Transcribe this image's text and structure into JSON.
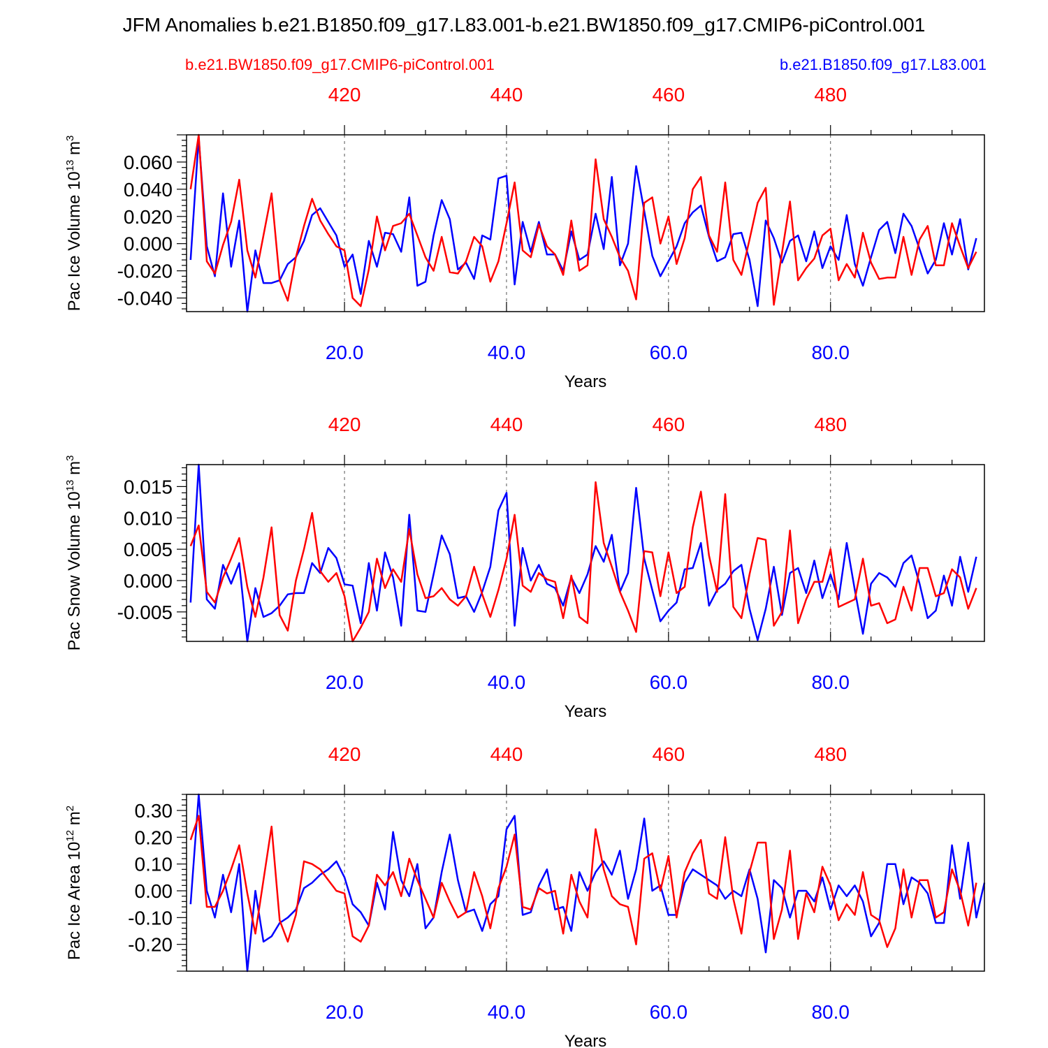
{
  "title": "JFM Anomalies b.e21.B1850.f09_g17.L83.001-b.e21.BW1850.f09_g17.CMIP6-piControl.001",
  "legend": {
    "red_case": "b.e21.BW1850.f09_g17.CMIP6-piControl.001",
    "blue_case": "b.e21.B1850.f09_g17.L83.001"
  },
  "colors": {
    "red": "#ff0000",
    "blue": "#0000ff",
    "axis": "#000000"
  },
  "chart_data": [
    {
      "type": "line",
      "name": "ice-volume",
      "ylabel_main": "Pac Ice Volume 10",
      "ylabel_sup": "13",
      "ylabel_unit": " m",
      "ylabel_unit_sup": "3",
      "xlabel": "Years",
      "xlim": [
        0.5,
        99
      ],
      "x_top_offset": 400,
      "ylim": [
        -0.05,
        0.08
      ],
      "yticks": [
        -0.04,
        -0.02,
        0.0,
        0.02,
        0.04,
        0.06
      ],
      "yticklabels": [
        "-0.040",
        "-0.020",
        "0.000",
        "0.020",
        "0.040",
        "0.060"
      ],
      "xticks_bottom": [
        20,
        40,
        60,
        80
      ],
      "xticklabels_bottom": [
        "20.0",
        "40.0",
        "60.0",
        "80.0"
      ],
      "xticks_top": [
        420,
        440,
        460,
        480
      ],
      "xticklabels_top": [
        "420",
        "440",
        "460",
        "480"
      ],
      "series": [
        {
          "name": "b.e21.B1850.f09_g17.L83.001",
          "color": "blue",
          "values": [
            -0.012,
            0.078,
            -0.002,
            -0.024,
            0.037,
            -0.017,
            0.017,
            -0.05,
            -0.005,
            -0.029,
            -0.029,
            -0.027,
            -0.015,
            -0.01,
            0.002,
            0.021,
            0.026,
            0.016,
            0.006,
            -0.017,
            -0.008,
            -0.037,
            0.002,
            -0.017,
            0.008,
            0.007,
            -0.006,
            0.034,
            -0.031,
            -0.028,
            0.006,
            0.032,
            0.018,
            -0.019,
            -0.014,
            -0.026,
            0.006,
            0.003,
            0.048,
            0.05,
            -0.03,
            0.016,
            -0.006,
            0.016,
            -0.008,
            -0.008,
            -0.02,
            0.009,
            -0.012,
            -0.008,
            0.022,
            -0.004,
            0.049,
            -0.016,
            0.0,
            0.057,
            0.024,
            -0.009,
            -0.024,
            -0.013,
            -0.002,
            0.015,
            0.023,
            0.028,
            0.005,
            -0.013,
            -0.01,
            0.007,
            0.008,
            -0.012,
            -0.046,
            0.017,
            0.004,
            -0.014,
            0.002,
            0.006,
            -0.013,
            0.009,
            -0.018,
            -0.002,
            -0.012,
            0.021,
            -0.015,
            -0.031,
            -0.01,
            0.01,
            0.016,
            -0.007,
            0.022,
            0.013,
            -0.004,
            -0.022,
            -0.012,
            0.015,
            -0.008,
            0.018,
            -0.019,
            0.004
          ]
        },
        {
          "name": "b.e21.BW1850.f09_g17.CMIP6-piControl.001",
          "color": "red",
          "values": [
            0.04,
            0.08,
            -0.013,
            -0.022,
            -0.001,
            0.016,
            0.047,
            -0.005,
            -0.025,
            0.006,
            0.037,
            -0.027,
            -0.042,
            -0.01,
            0.013,
            0.033,
            0.017,
            0.007,
            -0.002,
            -0.005,
            -0.04,
            -0.046,
            -0.019,
            0.02,
            -0.005,
            0.013,
            0.015,
            0.022,
            0.006,
            -0.01,
            -0.02,
            0.005,
            -0.021,
            -0.022,
            -0.013,
            0.005,
            -0.002,
            -0.028,
            -0.013,
            0.015,
            0.045,
            -0.005,
            -0.01,
            0.014,
            -0.002,
            -0.008,
            -0.023,
            0.017,
            -0.02,
            -0.016,
            0.062,
            0.018,
            0.005,
            -0.01,
            -0.02,
            -0.041,
            0.03,
            0.034,
            0.0,
            0.02,
            -0.015,
            0.004,
            0.04,
            0.049,
            0.006,
            -0.006,
            0.045,
            -0.012,
            -0.023,
            0.003,
            0.03,
            0.041,
            -0.045,
            -0.007,
            0.031,
            -0.027,
            -0.018,
            -0.011,
            0.006,
            0.011,
            -0.027,
            -0.015,
            -0.025,
            0.008,
            -0.014,
            -0.026,
            -0.025,
            -0.025,
            0.005,
            -0.023,
            0.003,
            0.013,
            -0.016,
            -0.016,
            0.015,
            -0.002,
            -0.018,
            -0.006
          ]
        }
      ]
    },
    {
      "type": "line",
      "name": "snow-volume",
      "ylabel_main": "Pac Snow Volume 10",
      "ylabel_sup": "13",
      "ylabel_unit": " m",
      "ylabel_unit_sup": "3",
      "xlabel": "Years",
      "xlim": [
        0.5,
        99
      ],
      "x_top_offset": 400,
      "ylim": [
        -0.0097,
        0.0185
      ],
      "yticks": [
        -0.005,
        0.0,
        0.005,
        0.01,
        0.015
      ],
      "yticklabels": [
        "-0.005",
        "0.000",
        "0.005",
        "0.010",
        "0.015"
      ],
      "xticks_bottom": [
        20,
        40,
        60,
        80
      ],
      "xticklabels_bottom": [
        "20.0",
        "40.0",
        "60.0",
        "80.0"
      ],
      "xticks_top": [
        420,
        440,
        460,
        480
      ],
      "xticklabels_top": [
        "420",
        "440",
        "460",
        "480"
      ],
      "series": [
        {
          "name": "b.e21.B1850.f09_g17.L83.001",
          "color": "blue",
          "values": [
            -0.0035,
            0.0185,
            -0.003,
            -0.0045,
            0.0025,
            -0.0005,
            0.0028,
            -0.0097,
            -0.0012,
            -0.0058,
            -0.0052,
            -0.004,
            -0.0022,
            -0.002,
            -0.002,
            0.0028,
            0.0012,
            0.0052,
            0.0036,
            -0.0006,
            -0.0008,
            -0.0068,
            0.0028,
            -0.0048,
            0.0045,
            0.0005,
            -0.0072,
            0.0105,
            -0.0048,
            -0.005,
            0.001,
            0.0072,
            0.0042,
            -0.0028,
            -0.0025,
            -0.005,
            -0.0018,
            0.0022,
            0.0112,
            0.014,
            -0.0072,
            0.0052,
            0.0,
            0.0025,
            -0.0005,
            -0.0012,
            -0.004,
            0.0005,
            -0.002,
            0.001,
            0.0055,
            0.003,
            0.0073,
            -0.0018,
            0.0012,
            0.0148,
            0.0035,
            -0.0015,
            -0.0065,
            -0.0048,
            -0.0035,
            0.0018,
            0.002,
            0.006,
            -0.004,
            -0.0015,
            -0.0005,
            0.0015,
            0.0025,
            -0.0045,
            -0.0095,
            -0.0045,
            0.0022,
            -0.0055,
            0.0012,
            0.002,
            -0.002,
            0.0032,
            -0.0028,
            0.001,
            -0.003,
            0.006,
            -0.0015,
            -0.0085,
            -0.0005,
            0.0012,
            0.0005,
            -0.001,
            0.0028,
            0.004,
            -0.0005,
            -0.006,
            -0.0048,
            0.0008,
            -0.004,
            0.0038,
            -0.0018,
            0.0038
          ]
        },
        {
          "name": "b.e21.BW1850.f09_g17.CMIP6-piControl.001",
          "color": "red",
          "values": [
            0.0055,
            0.0088,
            -0.0018,
            -0.0035,
            0.0005,
            0.0035,
            0.0068,
            -0.001,
            -0.0058,
            0.0005,
            0.0085,
            -0.0055,
            -0.008,
            0.0,
            0.005,
            0.0108,
            0.0015,
            -0.0002,
            0.0012,
            -0.0025,
            -0.0097,
            -0.0075,
            -0.005,
            0.0035,
            -0.0012,
            0.0018,
            -0.0002,
            0.0082,
            0.001,
            -0.0028,
            -0.0025,
            -0.0012,
            -0.003,
            -0.004,
            -0.0025,
            0.0022,
            -0.0022,
            -0.0058,
            -0.0015,
            0.0035,
            0.0105,
            -0.0008,
            -0.0018,
            0.0012,
            0.0002,
            -0.0002,
            -0.006,
            0.0008,
            -0.0058,
            -0.0068,
            0.0157,
            0.006,
            0.0022,
            -0.0018,
            -0.0048,
            -0.0082,
            0.0047,
            0.0045,
            -0.0025,
            0.0045,
            -0.002,
            -0.001,
            0.0085,
            0.0142,
            0.004,
            -0.0018,
            0.0138,
            -0.0042,
            -0.006,
            0.001,
            0.0068,
            0.0065,
            -0.0072,
            -0.005,
            0.008,
            -0.0068,
            -0.003,
            -0.0002,
            -0.0002,
            0.005,
            -0.0042,
            -0.0036,
            -0.003,
            0.0035,
            -0.004,
            -0.0036,
            -0.0068,
            -0.0062,
            -0.001,
            -0.0048,
            0.002,
            0.002,
            -0.0025,
            -0.002,
            0.0018,
            0.0005,
            -0.0045,
            -0.0012
          ]
        }
      ]
    },
    {
      "type": "line",
      "name": "ice-area",
      "ylabel_main": "Pac Ice Area 10",
      "ylabel_sup": "12",
      "ylabel_unit": " m",
      "ylabel_unit_sup": "2",
      "xlabel": "Years",
      "xlim": [
        0.5,
        99
      ],
      "x_top_offset": 400,
      "ylim": [
        -0.3,
        0.36
      ],
      "yticks": [
        -0.2,
        -0.1,
        0.0,
        0.1,
        0.2,
        0.3
      ],
      "yticklabels": [
        "-0.20",
        "-0.10",
        "0.00",
        "0.10",
        "0.20",
        "0.30"
      ],
      "xticks_bottom": [
        20,
        40,
        60,
        80
      ],
      "xticklabels_bottom": [
        "20.0",
        "40.0",
        "60.0",
        "80.0"
      ],
      "xticks_top": [
        420,
        440,
        460,
        480
      ],
      "xticklabels_top": [
        "420",
        "440",
        "460",
        "480"
      ],
      "series": [
        {
          "name": "b.e21.B1850.f09_g17.L83.001",
          "color": "blue",
          "values": [
            -0.05,
            0.36,
            0.0,
            -0.1,
            0.06,
            -0.08,
            0.1,
            -0.3,
            0.0,
            -0.19,
            -0.17,
            -0.12,
            -0.1,
            -0.07,
            0.01,
            0.03,
            0.06,
            0.08,
            0.11,
            0.05,
            -0.05,
            -0.08,
            -0.13,
            0.03,
            -0.07,
            0.22,
            0.04,
            -0.02,
            0.1,
            -0.14,
            -0.1,
            0.07,
            0.21,
            0.04,
            -0.08,
            -0.07,
            -0.15,
            -0.05,
            -0.02,
            0.23,
            0.28,
            -0.09,
            -0.08,
            0.02,
            0.08,
            -0.07,
            -0.06,
            -0.15,
            0.07,
            0.0,
            0.07,
            0.11,
            0.06,
            0.15,
            -0.03,
            0.08,
            0.27,
            0.0,
            0.02,
            -0.09,
            -0.09,
            0.03,
            0.08,
            0.06,
            0.04,
            0.02,
            -0.03,
            0.0,
            -0.02,
            0.08,
            -0.03,
            -0.23,
            0.04,
            0.01,
            -0.1,
            0.0,
            0.0,
            -0.04,
            0.05,
            -0.07,
            0.02,
            -0.02,
            0.02,
            -0.04,
            -0.17,
            -0.12,
            0.1,
            0.1,
            -0.05,
            0.05,
            0.03,
            -0.01,
            -0.12,
            -0.12,
            0.17,
            -0.03,
            0.18,
            -0.1,
            0.03
          ]
        },
        {
          "name": "b.e21.BW1850.f09_g17.CMIP6-piControl.001",
          "color": "red",
          "values": [
            0.19,
            0.28,
            -0.06,
            -0.06,
            0.0,
            0.08,
            0.17,
            -0.01,
            -0.16,
            0.04,
            0.24,
            -0.11,
            -0.19,
            -0.09,
            0.11,
            0.1,
            0.08,
            0.04,
            0.0,
            -0.01,
            -0.17,
            -0.19,
            -0.13,
            0.06,
            0.02,
            0.07,
            -0.02,
            0.12,
            0.04,
            -0.03,
            -0.1,
            0.03,
            -0.04,
            -0.1,
            -0.08,
            0.07,
            -0.02,
            -0.14,
            0.01,
            0.09,
            0.21,
            -0.06,
            -0.07,
            0.01,
            -0.01,
            0.0,
            -0.16,
            0.06,
            -0.04,
            -0.1,
            0.23,
            0.08,
            -0.02,
            -0.05,
            -0.06,
            -0.2,
            0.12,
            0.14,
            0.0,
            0.13,
            -0.1,
            0.07,
            0.14,
            0.19,
            -0.01,
            -0.03,
            0.2,
            -0.03,
            -0.16,
            0.07,
            0.18,
            0.18,
            -0.18,
            -0.07,
            0.15,
            -0.18,
            -0.01,
            -0.08,
            0.09,
            0.02,
            -0.11,
            -0.05,
            -0.09,
            0.07,
            -0.09,
            -0.11,
            -0.21,
            -0.14,
            0.08,
            -0.1,
            0.04,
            0.04,
            -0.1,
            -0.08,
            0.08,
            0.0,
            -0.13,
            0.03
          ]
        }
      ]
    }
  ]
}
